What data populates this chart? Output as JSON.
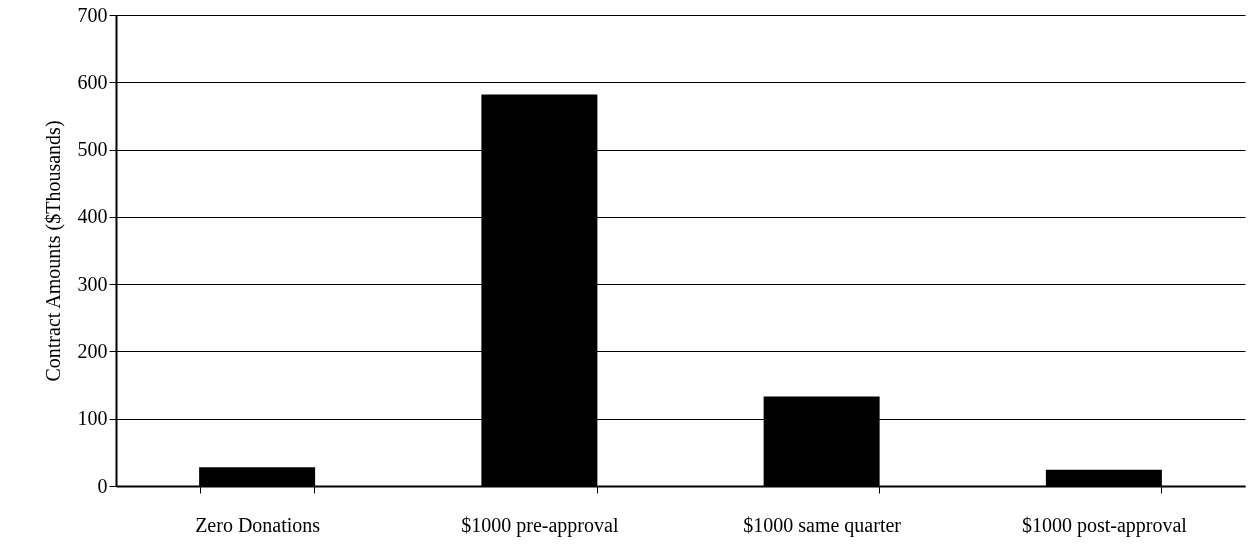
{
  "chart_data": {
    "type": "bar",
    "ylabel": "Contract Amounts ($Thousands)",
    "categories": [
      "Zero Donations",
      "$1000 pre-approval",
      "$1000 same quarter",
      "$1000 post-approval"
    ],
    "values": [
      28,
      582,
      133,
      24
    ],
    "color": "#000000",
    "ylim": [
      0,
      700
    ],
    "yticks": [
      0,
      100,
      200,
      300,
      400,
      500,
      600,
      700
    ],
    "grid": "y"
  }
}
